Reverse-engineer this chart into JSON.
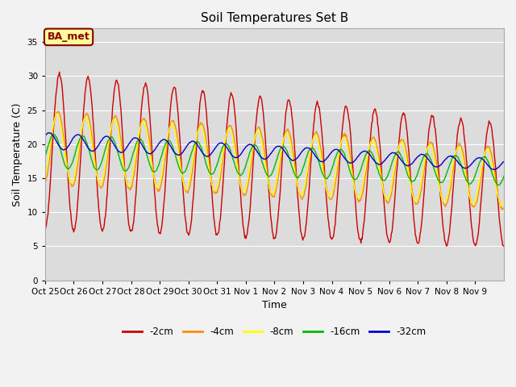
{
  "title": "Soil Temperatures Set B",
  "xlabel": "Time",
  "ylabel": "Soil Temperature (C)",
  "ylim": [
    0,
    37
  ],
  "yticks": [
    0,
    5,
    10,
    15,
    20,
    25,
    30,
    35
  ],
  "annotation_text": "BA_met",
  "annotation_box_color": "#FFFF99",
  "annotation_box_edge": "#8B0000",
  "background_color": "#DCDCDC",
  "plot_bg_color": "#DCDCDC",
  "fig_bg_color": "#F2F2F2",
  "colors": {
    "-2cm": "#CC0000",
    "-4cm": "#FF8C00",
    "-8cm": "#FFFF00",
    "-16cm": "#00BB00",
    "-32cm": "#0000CC"
  },
  "legend_labels": [
    "-2cm",
    "-4cm",
    "-8cm",
    "-16cm",
    "-32cm"
  ],
  "xtick_labels": [
    "Oct 25",
    "Oct 26",
    "Oct 27",
    "Oct 28",
    "Oct 29",
    "Oct 30",
    "Oct 31",
    "Nov 1",
    "Nov 2",
    "Nov 3",
    "Nov 4",
    "Nov 5",
    "Nov 6",
    "Nov 7",
    "Nov 8",
    "Nov 9"
  ],
  "n_days": 16,
  "points_per_day": 48
}
